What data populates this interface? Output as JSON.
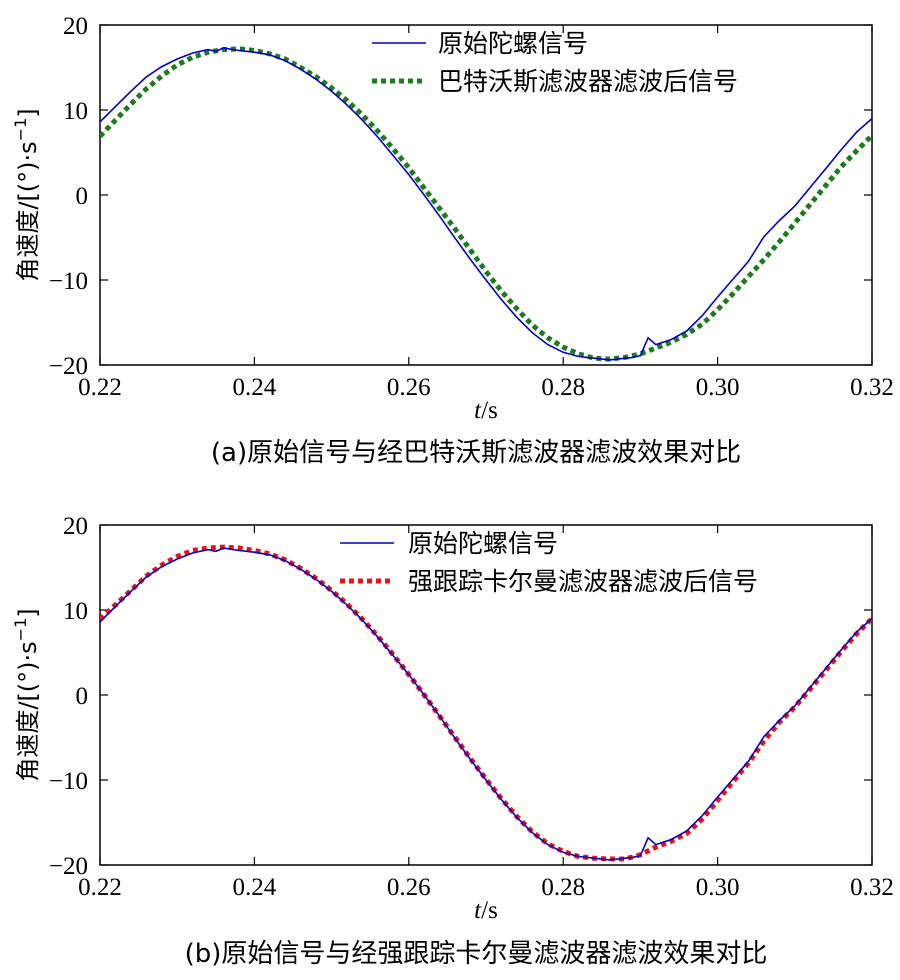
{
  "chart_data": [
    {
      "type": "line",
      "panel": "a",
      "caption": "(a)原始信号与经巴特沃斯滤波器滤波效果对比",
      "xlabel_italic": "t",
      "xlabel_unit": "/s",
      "ylabel": "角速度/[(°)·s",
      "ylabel_sup": "−1",
      "ylabel_close": "]",
      "xlim": [
        0.22,
        0.32
      ],
      "ylim": [
        -20,
        20
      ],
      "xticks": [
        "0.22",
        "0.24",
        "0.26",
        "0.28",
        "0.30",
        "0.32"
      ],
      "yticks": [
        "20",
        "10",
        "0",
        "−10",
        "−20"
      ],
      "legend_position": "top-right",
      "series": [
        {
          "name": "原始陀螺信号",
          "color": "#0000cc",
          "style": "solid",
          "x": [
            0.22,
            0.222,
            0.224,
            0.226,
            0.228,
            0.23,
            0.232,
            0.234,
            0.235,
            0.236,
            0.238,
            0.24,
            0.242,
            0.244,
            0.246,
            0.248,
            0.25,
            0.252,
            0.254,
            0.256,
            0.258,
            0.26,
            0.262,
            0.264,
            0.266,
            0.268,
            0.27,
            0.272,
            0.274,
            0.276,
            0.278,
            0.28,
            0.282,
            0.284,
            0.286,
            0.288,
            0.289,
            0.29,
            0.291,
            0.292,
            0.294,
            0.296,
            0.298,
            0.3,
            0.302,
            0.304,
            0.306,
            0.308,
            0.31,
            0.312,
            0.314,
            0.316,
            0.318,
            0.32
          ],
          "y": [
            8.6,
            10.4,
            12.2,
            13.9,
            15.1,
            16.0,
            16.7,
            17.1,
            16.9,
            17.3,
            17.0,
            16.8,
            16.5,
            15.8,
            14.8,
            13.6,
            12.2,
            10.6,
            8.8,
            6.8,
            4.6,
            2.4,
            0.0,
            -2.5,
            -5.1,
            -7.6,
            -10.0,
            -12.3,
            -14.4,
            -16.2,
            -17.6,
            -18.5,
            -19.0,
            -19.2,
            -19.4,
            -19.2,
            -19.1,
            -18.9,
            -16.8,
            -17.6,
            -17.0,
            -16.0,
            -14.2,
            -12.0,
            -9.9,
            -7.8,
            -4.9,
            -3.0,
            -1.3,
            0.9,
            3.1,
            5.3,
            7.4,
            9.0
          ]
        },
        {
          "name": "巴特沃斯滤波器滤波后信号",
          "color": "#1e7a1e",
          "style": "dotted",
          "x": [
            0.22,
            0.222,
            0.224,
            0.226,
            0.228,
            0.23,
            0.232,
            0.234,
            0.236,
            0.238,
            0.24,
            0.242,
            0.244,
            0.246,
            0.248,
            0.25,
            0.252,
            0.254,
            0.256,
            0.258,
            0.26,
            0.262,
            0.264,
            0.266,
            0.268,
            0.27,
            0.272,
            0.274,
            0.276,
            0.278,
            0.28,
            0.282,
            0.284,
            0.286,
            0.288,
            0.29,
            0.292,
            0.294,
            0.296,
            0.298,
            0.3,
            0.302,
            0.304,
            0.306,
            0.308,
            0.31,
            0.312,
            0.314,
            0.316,
            0.318,
            0.32
          ],
          "y": [
            6.9,
            8.8,
            10.7,
            12.5,
            14.0,
            15.3,
            16.2,
            16.8,
            17.1,
            17.2,
            17.0,
            16.6,
            16.0,
            15.0,
            13.9,
            12.6,
            11.1,
            9.4,
            7.5,
            5.4,
            3.2,
            0.8,
            -1.6,
            -4.0,
            -6.5,
            -9.0,
            -11.3,
            -13.4,
            -15.3,
            -16.8,
            -17.9,
            -18.7,
            -19.2,
            -19.3,
            -19.1,
            -18.7,
            -18.0,
            -17.3,
            -16.4,
            -15.2,
            -13.5,
            -11.6,
            -9.6,
            -7.6,
            -5.5,
            -3.3,
            -1.1,
            1.1,
            3.3,
            5.2,
            7.0
          ]
        }
      ]
    },
    {
      "type": "line",
      "panel": "b",
      "caption": "(b)原始信号与经强跟踪卡尔曼滤波器滤波效果对比",
      "xlabel_italic": "t",
      "xlabel_unit": "/s",
      "ylabel": "角速度/[(°)·s",
      "ylabel_sup": "−1",
      "ylabel_close": "]",
      "xlim": [
        0.22,
        0.32
      ],
      "ylim": [
        -20,
        20
      ],
      "xticks": [
        "0.22",
        "0.24",
        "0.26",
        "0.28",
        "0.30",
        "0.32"
      ],
      "yticks": [
        "20",
        "10",
        "0",
        "−10",
        "−20"
      ],
      "legend_position": "top-right",
      "series": [
        {
          "name": "原始陀螺信号",
          "color": "#0000cc",
          "style": "solid",
          "x": [
            0.22,
            0.222,
            0.224,
            0.226,
            0.228,
            0.23,
            0.232,
            0.234,
            0.235,
            0.236,
            0.238,
            0.24,
            0.242,
            0.244,
            0.246,
            0.248,
            0.25,
            0.252,
            0.254,
            0.256,
            0.258,
            0.26,
            0.262,
            0.264,
            0.266,
            0.268,
            0.27,
            0.272,
            0.274,
            0.276,
            0.278,
            0.28,
            0.282,
            0.284,
            0.286,
            0.288,
            0.289,
            0.29,
            0.291,
            0.292,
            0.294,
            0.296,
            0.298,
            0.3,
            0.302,
            0.304,
            0.306,
            0.308,
            0.31,
            0.312,
            0.314,
            0.316,
            0.318,
            0.32
          ],
          "y": [
            8.6,
            10.4,
            12.2,
            13.9,
            15.1,
            16.0,
            16.7,
            17.1,
            16.9,
            17.3,
            17.0,
            16.8,
            16.5,
            15.8,
            14.8,
            13.6,
            12.2,
            10.6,
            8.8,
            6.8,
            4.6,
            2.4,
            0.0,
            -2.5,
            -5.1,
            -7.6,
            -10.0,
            -12.3,
            -14.4,
            -16.2,
            -17.6,
            -18.5,
            -19.0,
            -19.2,
            -19.4,
            -19.2,
            -19.1,
            -18.9,
            -16.8,
            -17.6,
            -17.0,
            -16.0,
            -14.2,
            -12.0,
            -9.9,
            -7.8,
            -4.9,
            -3.0,
            -1.3,
            0.9,
            3.1,
            5.3,
            7.4,
            9.0
          ]
        },
        {
          "name": "强跟踪卡尔曼滤波器滤波后信号",
          "color": "#ee1111",
          "style": "dotted",
          "x": [
            0.22,
            0.222,
            0.224,
            0.226,
            0.228,
            0.23,
            0.232,
            0.234,
            0.236,
            0.238,
            0.24,
            0.242,
            0.244,
            0.246,
            0.248,
            0.25,
            0.252,
            0.254,
            0.256,
            0.258,
            0.26,
            0.262,
            0.264,
            0.266,
            0.268,
            0.27,
            0.272,
            0.274,
            0.276,
            0.278,
            0.28,
            0.282,
            0.284,
            0.286,
            0.288,
            0.29,
            0.292,
            0.294,
            0.296,
            0.298,
            0.3,
            0.302,
            0.304,
            0.306,
            0.308,
            0.31,
            0.312,
            0.314,
            0.316,
            0.318,
            0.32
          ],
          "y": [
            8.9,
            10.6,
            12.3,
            14.0,
            15.3,
            16.3,
            17.0,
            17.3,
            17.4,
            17.3,
            17.0,
            16.6,
            15.9,
            14.9,
            13.7,
            12.3,
            10.7,
            8.9,
            6.9,
            4.7,
            2.4,
            0.0,
            -2.5,
            -5.0,
            -7.5,
            -9.9,
            -12.2,
            -14.3,
            -16.1,
            -17.5,
            -18.4,
            -19.0,
            -19.2,
            -19.3,
            -19.3,
            -18.8,
            -17.9,
            -17.2,
            -16.3,
            -14.6,
            -12.4,
            -10.2,
            -8.0,
            -5.4,
            -3.2,
            -1.4,
            0.7,
            2.9,
            5.1,
            7.2,
            9.0
          ]
        }
      ]
    }
  ]
}
